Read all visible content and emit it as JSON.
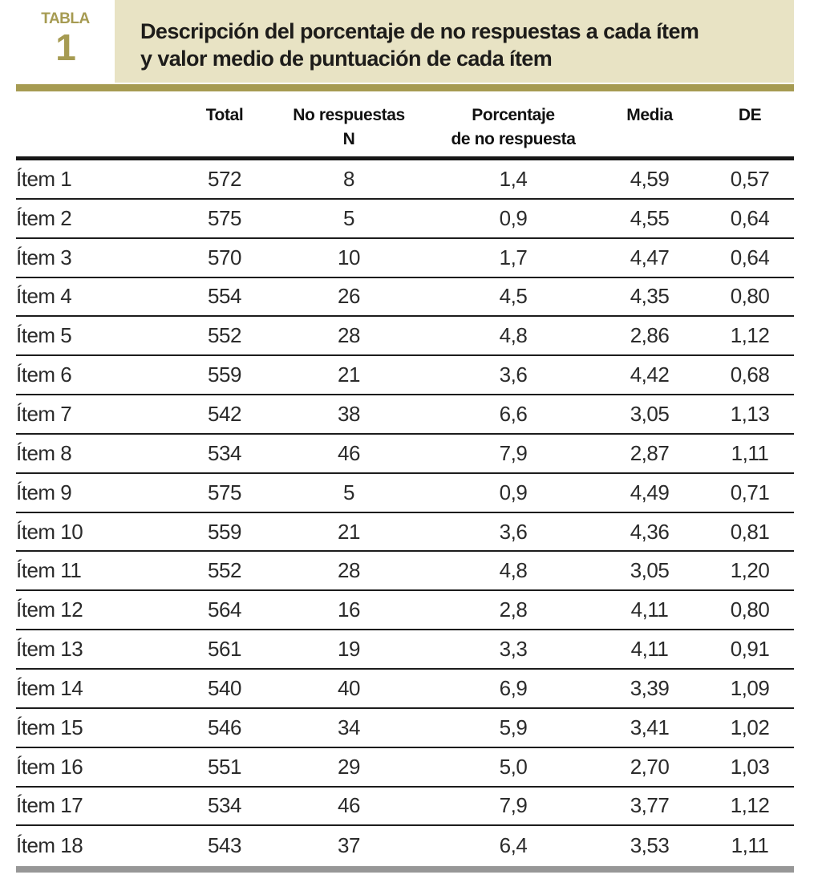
{
  "label": {
    "kicker": "TABLA",
    "number": "1"
  },
  "title": {
    "line1": "Descripción del porcentaje de no respuestas a cada ítem",
    "line2": "y valor medio de puntuación de cada ítem"
  },
  "colors": {
    "accent_olive": "#a69b52",
    "title_bg": "#e8e3c4",
    "rule_black": "#161616",
    "bottom_bar": "#979797"
  },
  "table": {
    "headers": [
      {
        "line1": "Total",
        "line2": ""
      },
      {
        "line1": "No respuestas",
        "line2": "N"
      },
      {
        "line1": "Porcentaje",
        "line2": "de no respuesta"
      },
      {
        "line1": "Media",
        "line2": ""
      },
      {
        "line1": "DE",
        "line2": ""
      }
    ],
    "rows": [
      [
        "Ítem 1",
        "572",
        "8",
        "1,4",
        "4,59",
        "0,57"
      ],
      [
        "Ítem 2",
        "575",
        "5",
        "0,9",
        "4,55",
        "0,64"
      ],
      [
        "Ítem 3",
        "570",
        "10",
        "1,7",
        "4,47",
        "0,64"
      ],
      [
        "Ítem 4",
        "554",
        "26",
        "4,5",
        "4,35",
        "0,80"
      ],
      [
        "Ítem 5",
        "552",
        "28",
        "4,8",
        "2,86",
        "1,12"
      ],
      [
        "Ítem 6",
        "559",
        "21",
        "3,6",
        "4,42",
        "0,68"
      ],
      [
        "Ítem 7",
        "542",
        "38",
        "6,6",
        "3,05",
        "1,13"
      ],
      [
        "Ítem 8",
        "534",
        "46",
        "7,9",
        "2,87",
        "1,11"
      ],
      [
        "Ítem 9",
        "575",
        "5",
        "0,9",
        "4,49",
        "0,71"
      ],
      [
        "Ítem 10",
        "559",
        "21",
        "3,6",
        "4,36",
        "0,81"
      ],
      [
        "Ítem 11",
        "552",
        "28",
        "4,8",
        "3,05",
        "1,20"
      ],
      [
        "Ítem 12",
        "564",
        "16",
        "2,8",
        "4,11",
        "0,80"
      ],
      [
        "Ítem 13",
        "561",
        "19",
        "3,3",
        "4,11",
        "0,91"
      ],
      [
        "Ítem 14",
        "540",
        "40",
        "6,9",
        "3,39",
        "1,09"
      ],
      [
        "Ítem 15",
        "546",
        "34",
        "5,9",
        "3,41",
        "1,02"
      ],
      [
        "Ítem 16",
        "551",
        "29",
        "5,0",
        "2,70",
        "1,03"
      ],
      [
        "Ítem 17",
        "534",
        "46",
        "7,9",
        "3,77",
        "1,12"
      ],
      [
        "Ítem 18",
        "543",
        "37",
        "6,4",
        "3,53",
        "1,11"
      ]
    ]
  }
}
